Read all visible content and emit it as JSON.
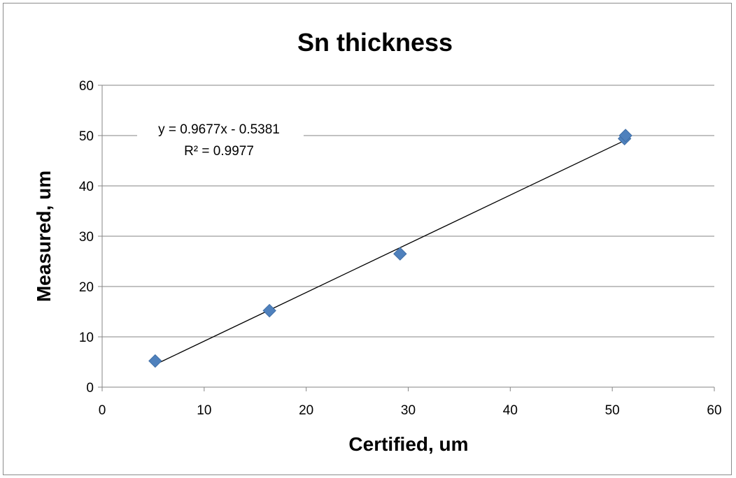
{
  "chart_data": {
    "type": "scatter",
    "title": "Sn thickness",
    "xlabel": "Certified, um",
    "ylabel": "Measured, um",
    "xlim": [
      0,
      60
    ],
    "ylim": [
      0,
      60
    ],
    "xticks": [
      "0",
      "10",
      "20",
      "30",
      "40",
      "50",
      "60"
    ],
    "yticks": [
      "0",
      "10",
      "20",
      "30",
      "40",
      "50",
      "60"
    ],
    "grid": "horizontal",
    "series": [
      {
        "marker": "diamond",
        "color": "#4f81bd",
        "points": [
          {
            "x": 5.2,
            "y": 5.2
          },
          {
            "x": 16.4,
            "y": 15.2
          },
          {
            "x": 29.2,
            "y": 26.5
          },
          {
            "x": 51.2,
            "y": 49.4
          },
          {
            "x": 51.3,
            "y": 50.0
          }
        ]
      }
    ],
    "trendline": {
      "type": "linear",
      "slope": 0.9677,
      "intercept": -0.5381,
      "x_range": [
        5.2,
        51.3
      ],
      "color": "#000000",
      "equation": "y = 0.9677x - 0.5381",
      "r_squared": "R² = 0.9977"
    }
  }
}
